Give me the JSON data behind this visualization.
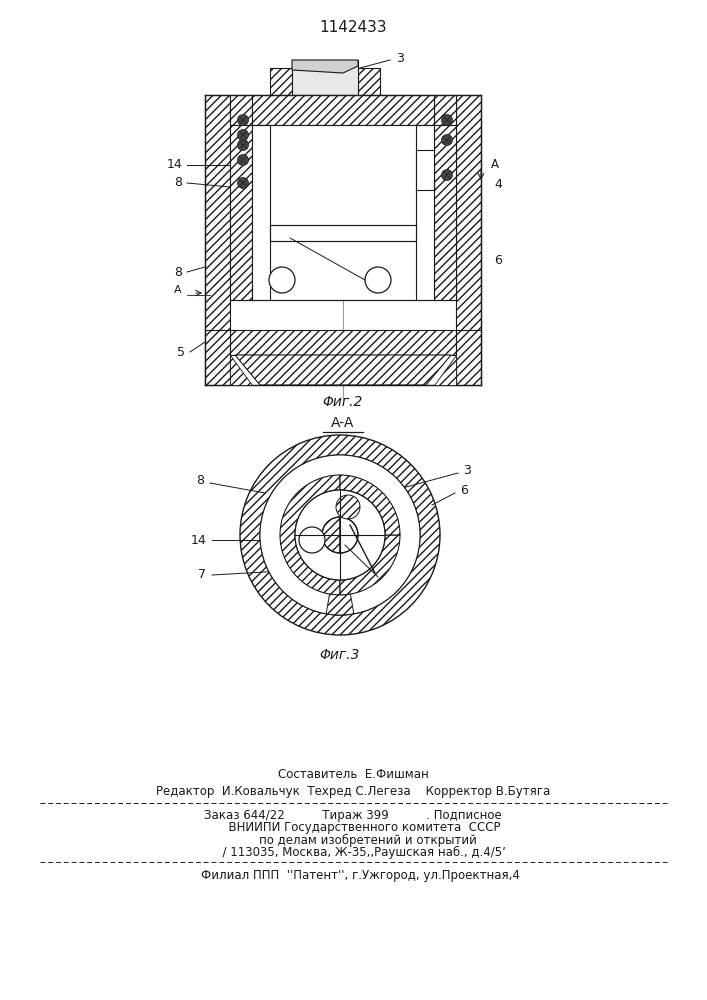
{
  "patent_number": "1142433",
  "fig2_label": "Φиг.2",
  "fig3_label": "Φиг.3",
  "section_label": "A-A",
  "bg": "#ffffff",
  "lc": "#1a1a1a",
  "footer_line1": "Составитель  Е.Фишман",
  "footer_line2": "Редактор  И.Ковальчук  Техред С.Легеза    Корректор В.Бутяга",
  "footer_line3": "Заказ 644/22          Тираж 399          . Подписное",
  "footer_line4": "      ВНИИПИ Государственного комитета  СССР",
  "footer_line5": "        по делам изобретений и открытий",
  "footer_line6": "      / 113035, Москва, Ж-35,,Раушская наб., д.4/5ʼ",
  "footer_line7": "    Филиал ППП  ''Патент'', г.Ужгород, ул.Проектная,4"
}
